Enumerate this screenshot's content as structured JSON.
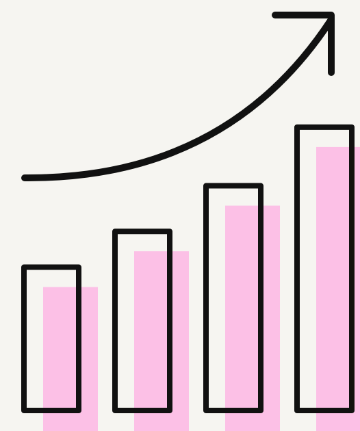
{
  "illustration": {
    "name": "growth-bar-chart-icon",
    "bar_count": 4,
    "relative_heights": [
      0.44,
      0.55,
      0.69,
      0.87
    ],
    "trend": "upward",
    "colors": {
      "background": "#f6f5f1",
      "outline": "#111111",
      "fill": "#fcc0e6"
    }
  }
}
